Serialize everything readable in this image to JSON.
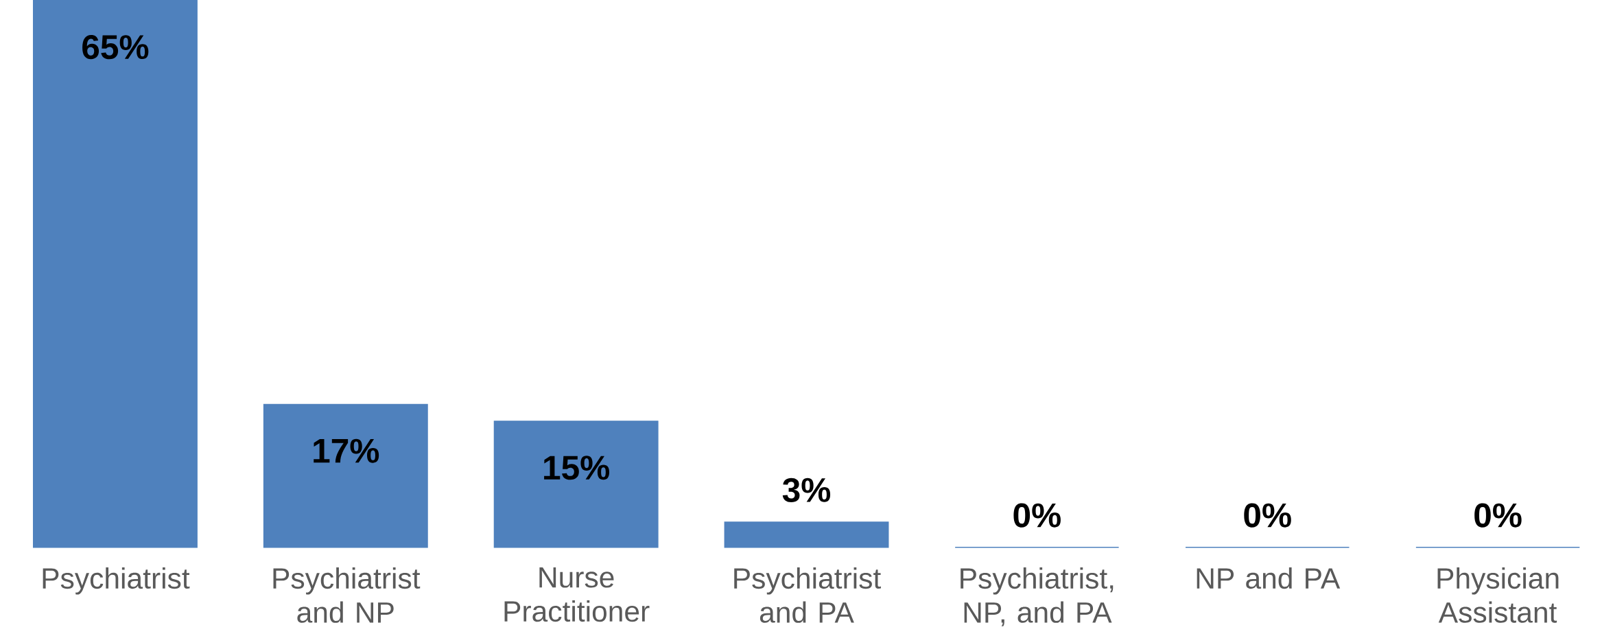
{
  "chart_data": {
    "type": "bar",
    "categories": [
      "Psychiatrist",
      "Psychiatrist and NP",
      "Nurse Practitioner",
      "Psychiatrist and PA",
      "Psychiatrist, NP, and PA",
      "NP and PA",
      "Physician Assistant"
    ],
    "values": [
      65,
      17,
      15,
      3,
      0,
      0,
      0
    ],
    "value_labels": [
      "65%",
      "17%",
      "15%",
      "3%",
      "0%",
      "0%",
      "0%"
    ],
    "color": "#4f81bd"
  }
}
